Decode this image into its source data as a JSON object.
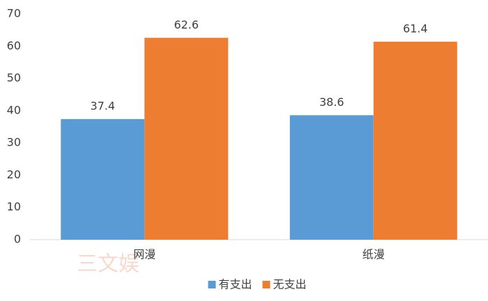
{
  "chart_data": {
    "type": "bar",
    "categories": [
      "网漫",
      "纸漫"
    ],
    "series": [
      {
        "name": "有支出",
        "color": "#5b9bd5",
        "values": [
          37.4,
          38.6
        ]
      },
      {
        "name": "无支出",
        "color": "#ed7d31",
        "values": [
          62.6,
          61.4
        ]
      }
    ],
    "ylim": [
      0,
      70
    ],
    "yticks": [
      0,
      10,
      20,
      30,
      40,
      50,
      60,
      70
    ],
    "legend": "bottom",
    "watermark": "三文娱"
  }
}
